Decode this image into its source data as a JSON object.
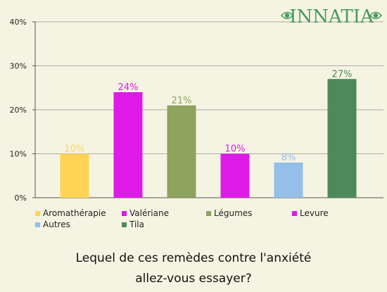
{
  "logo": {
    "text": "INNATIA",
    "color": "#4a9a5c"
  },
  "chart_data": {
    "type": "bar",
    "categories": [
      "Aromathérapie",
      "Valériane",
      "Légumes",
      "Levure",
      "Autres",
      "Tila"
    ],
    "values": [
      10,
      24,
      21,
      10,
      8,
      27
    ],
    "value_labels": [
      "10%",
      "24%",
      "21%",
      "10%",
      "8%",
      "27%"
    ],
    "colors": [
      "#ffd454",
      "#dd1ae8",
      "#8ea35c",
      "#dd1ae8",
      "#93bfe8",
      "#4e895c"
    ],
    "y_ticks": [
      "0%",
      "10%",
      "20%",
      "30%",
      "40%"
    ],
    "ylim": [
      0,
      40
    ],
    "grid": true,
    "legend_position": "bottom"
  },
  "question": {
    "line1": "Lequel de ces remèdes contre l'anxiété",
    "line2": "allez-vous essayer?"
  }
}
